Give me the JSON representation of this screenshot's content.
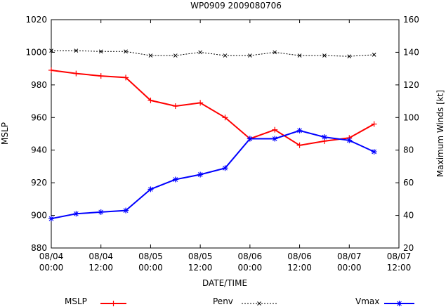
{
  "chart_data": {
    "type": "line",
    "title": "WP0909 2009080706",
    "xlabel": "DATE/TIME",
    "ylabel_left": "MSLP",
    "ylabel_right": "Maximum Winds [kt]",
    "ylim_left": [
      880,
      1020
    ],
    "ylim_right": [
      20,
      160
    ],
    "yticks_left": [
      "880",
      "900",
      "920",
      "940",
      "960",
      "980",
      "1000",
      "1020"
    ],
    "yticks_right": [
      "20",
      "40",
      "60",
      "80",
      "100",
      "120",
      "140",
      "160"
    ],
    "xticks": [
      {
        "date": "08/04",
        "time": "00:00"
      },
      {
        "date": "08/04",
        "time": "12:00"
      },
      {
        "date": "08/05",
        "time": "00:00"
      },
      {
        "date": "08/05",
        "time": "12:00"
      },
      {
        "date": "08/06",
        "time": "00:00"
      },
      {
        "date": "08/06",
        "time": "12:00"
      },
      {
        "date": "08/07",
        "time": "00:00"
      },
      {
        "date": "08/07",
        "time": "12:00"
      }
    ],
    "x": [
      "08/04 00:00",
      "08/04 06:00",
      "08/04 12:00",
      "08/04 18:00",
      "08/05 00:00",
      "08/05 06:00",
      "08/05 12:00",
      "08/05 18:00",
      "08/06 00:00",
      "08/06 06:00",
      "08/06 12:00",
      "08/06 18:00",
      "08/07 00:00",
      "08/07 06:00"
    ],
    "series": [
      {
        "name": "MSLP",
        "axis": "left",
        "color": "#ff0000",
        "marker": "plus",
        "values": [
          989,
          987,
          985.5,
          984.5,
          970.5,
          967,
          969,
          960,
          947,
          952.5,
          943,
          945.5,
          947.5,
          956
        ]
      },
      {
        "name": "Penv",
        "axis": "left",
        "color": "#000000",
        "marker": "cross",
        "dashed": true,
        "values": [
          1001,
          1001,
          1000.5,
          1000.5,
          998,
          998,
          1000,
          998,
          998,
          1000,
          998,
          998,
          997.5,
          998.5
        ]
      },
      {
        "name": "Vmax",
        "axis": "right",
        "color": "#0000ff",
        "marker": "star",
        "values": [
          38,
          41,
          42,
          43,
          56,
          62,
          65,
          69,
          87,
          87,
          92,
          88,
          86,
          79
        ]
      }
    ],
    "legend_placement": "bottom",
    "grid": false
  }
}
